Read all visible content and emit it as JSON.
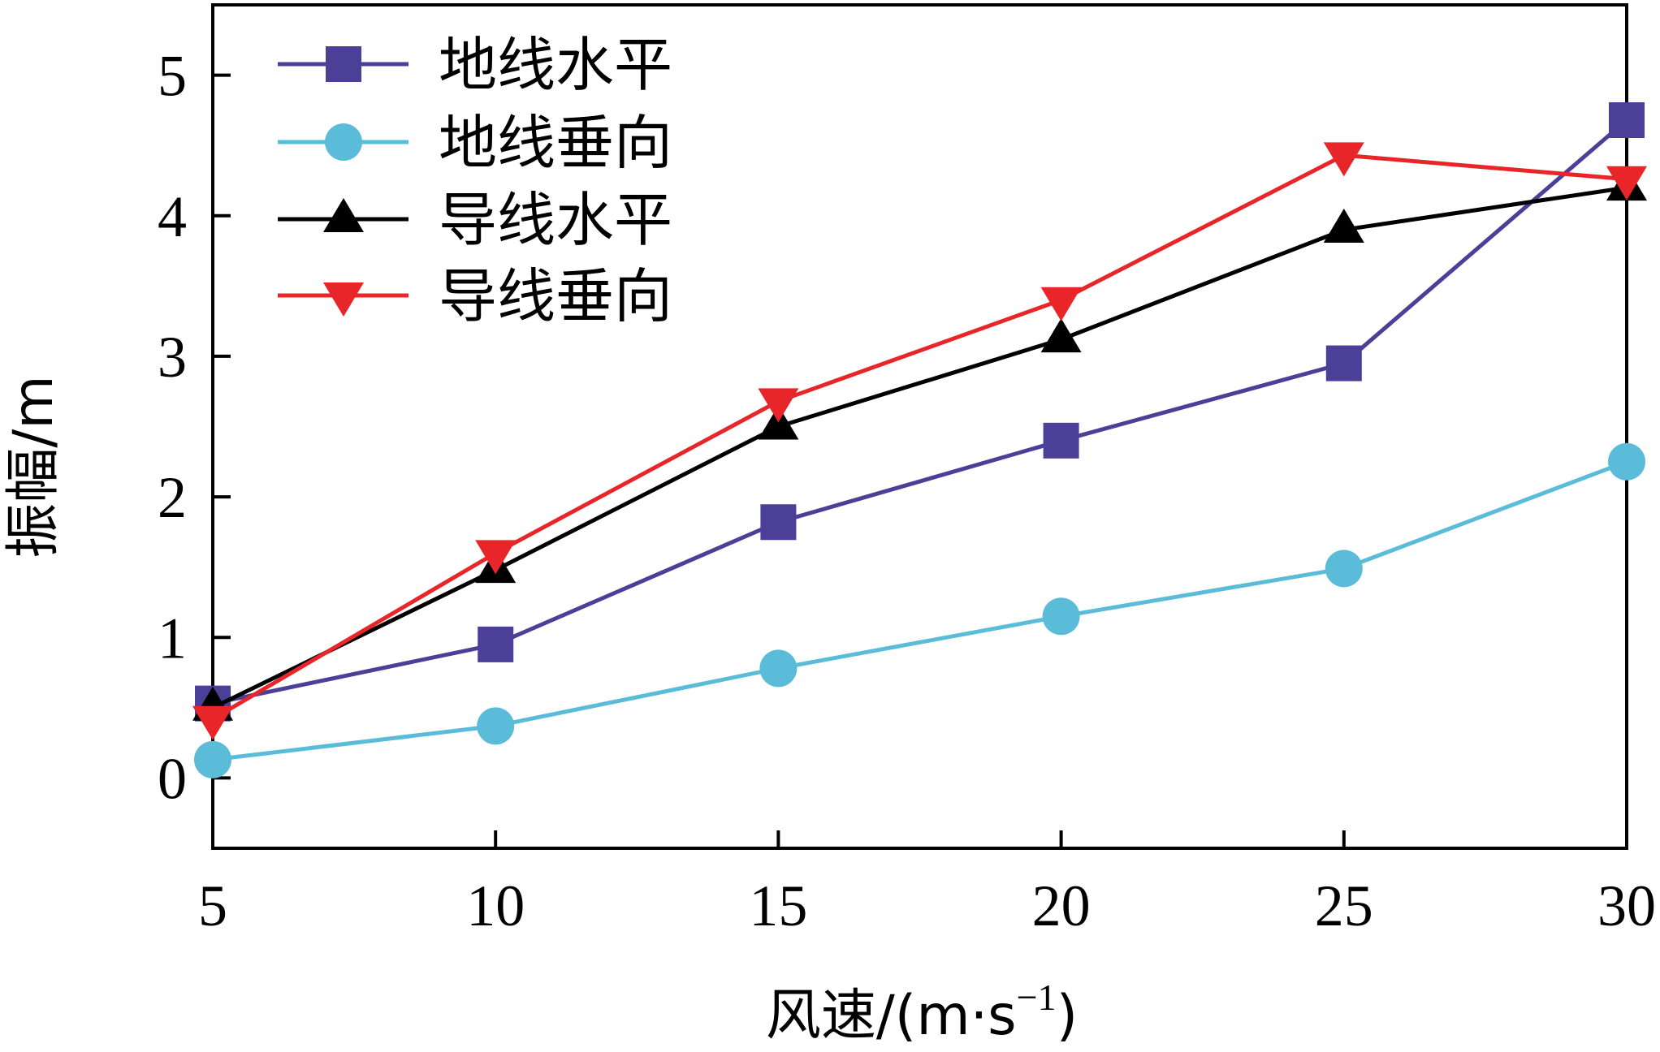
{
  "chart_data": {
    "type": "line",
    "title": "",
    "x": [
      5,
      10,
      15,
      20,
      25,
      30
    ],
    "xlim": [
      5,
      30
    ],
    "ylim": [
      -0.5,
      5.5
    ],
    "xticks": [
      "5",
      "10",
      "15",
      "20",
      "25",
      "30"
    ],
    "yticks": [
      "0",
      "1",
      "2",
      "3",
      "4",
      "5"
    ],
    "xlabel_main": "风速/(m·s",
    "xlabel_sup": "−1",
    "xlabel_close": ")",
    "ylabel": "振幅/m",
    "legend_position": "top-left",
    "grid": false,
    "series": [
      {
        "name": "地线水平",
        "color": "#4b3f97",
        "marker": "square",
        "values": [
          0.53,
          0.95,
          1.82,
          2.4,
          2.95,
          4.68
        ]
      },
      {
        "name": "地线垂向",
        "color": "#5bbcd9",
        "marker": "circle",
        "values": [
          0.13,
          0.37,
          0.78,
          1.15,
          1.49,
          2.25
        ]
      },
      {
        "name": "导线水平",
        "color": "#000000",
        "marker": "triangle-up",
        "values": [
          0.5,
          1.48,
          2.5,
          3.12,
          3.9,
          4.2
        ]
      },
      {
        "name": "导线垂向",
        "color": "#e8262a",
        "marker": "triangle-down",
        "values": [
          0.42,
          1.6,
          2.68,
          3.4,
          4.43,
          4.26
        ]
      }
    ]
  }
}
